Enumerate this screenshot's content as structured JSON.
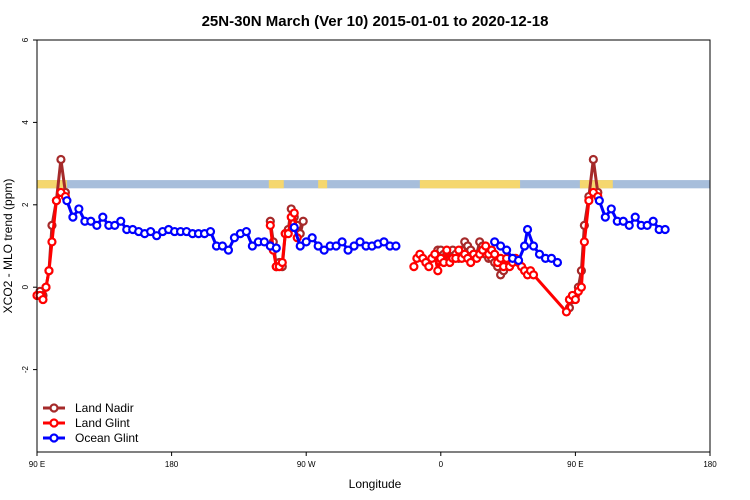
{
  "chart_data": {
    "type": "line",
    "title": "25N-30N March (Ver 10)   2015-01-01 to 2020-12-18",
    "xlabel": "Longitude",
    "ylabel": "XCO2 - MLO trend (ppm)",
    "xlim": [
      90,
      540
    ],
    "ylim": [
      -4,
      6
    ],
    "xticks": [
      {
        "value": 90,
        "label": "90 E"
      },
      {
        "value": 180,
        "label": "180"
      },
      {
        "value": 270,
        "label": "90 W"
      },
      {
        "value": 360,
        "label": "0"
      },
      {
        "value": 450,
        "label": "90 E"
      },
      {
        "value": 540,
        "label": "180"
      }
    ],
    "yticks": [
      {
        "value": -2,
        "label": "-2"
      },
      {
        "value": 0,
        "label": "0"
      },
      {
        "value": 2,
        "label": "2"
      },
      {
        "value": 4,
        "label": "4"
      },
      {
        "value": 6,
        "label": "6"
      }
    ],
    "grid": false,
    "legend_position": "bottom-left",
    "land_ocean_band": {
      "y_range": [
        2.4,
        2.6
      ],
      "land_color": "#f5d76e",
      "ocean_color": "#a7bedb",
      "land_segments": [
        [
          90,
          110
        ],
        [
          245,
          255
        ],
        [
          278,
          284
        ],
        [
          346,
          413
        ],
        [
          453,
          475
        ]
      ]
    },
    "series": [
      {
        "name": "Land Nadir",
        "color": "#a52a2a",
        "segments": [
          [
            [
              92,
              -0.1
            ],
            [
              94,
              -0.2
            ],
            [
              96,
              0.0
            ],
            [
              98,
              0.4
            ],
            [
              100,
              1.5
            ],
            [
              103,
              2.1
            ],
            [
              106,
              3.1
            ],
            [
              109,
              2.3
            ]
          ],
          [
            [
              246,
              1.6
            ],
            [
              248,
              1.1
            ],
            [
              250,
              0.5
            ],
            [
              252,
              0.6
            ],
            [
              254,
              0.5
            ],
            [
              256,
              1.3
            ],
            [
              258,
              1.4
            ],
            [
              260,
              1.9
            ],
            [
              262,
              1.7
            ],
            [
              264,
              1.5
            ],
            [
              266,
              1.3
            ],
            [
              268,
              1.6
            ]
          ],
          [
            [
              358,
              0.9
            ],
            [
              360,
              0.9
            ],
            [
              362,
              0.8
            ],
            [
              364,
              0.8
            ],
            [
              366,
              0.7
            ],
            [
              368,
              0.9
            ],
            [
              370,
              0.8
            ],
            [
              372,
              0.7
            ],
            [
              374,
              0.9
            ],
            [
              376,
              1.1
            ],
            [
              378,
              1.0
            ],
            [
              380,
              0.9
            ],
            [
              382,
              0.8
            ],
            [
              384,
              0.8
            ],
            [
              386,
              1.1
            ],
            [
              388,
              1.0
            ],
            [
              390,
              0.8
            ],
            [
              392,
              0.7
            ],
            [
              394,
              0.7
            ],
            [
              396,
              0.6
            ],
            [
              398,
              0.5
            ],
            [
              400,
              0.3
            ],
            [
              402,
              0.4
            ]
          ],
          [
            [
              446,
              -0.5
            ],
            [
              448,
              -0.3
            ],
            [
              450,
              -0.2
            ],
            [
              452,
              0.0
            ],
            [
              454,
              0.4
            ],
            [
              456,
              1.5
            ],
            [
              459,
              2.2
            ],
            [
              462,
              3.1
            ],
            [
              465,
              2.3
            ]
          ]
        ]
      },
      {
        "name": "Land Glint",
        "color": "#ff0000",
        "segments": [
          [
            [
              90,
              -0.2
            ],
            [
              92,
              -0.2
            ],
            [
              94,
              -0.3
            ],
            [
              96,
              0.0
            ],
            [
              98,
              0.4
            ],
            [
              100,
              1.1
            ],
            [
              103,
              2.1
            ],
            [
              106,
              2.3
            ],
            [
              109,
              2.2
            ]
          ],
          [
            [
              246,
              1.5
            ],
            [
              248,
              0.9
            ],
            [
              250,
              0.5
            ],
            [
              252,
              0.5
            ],
            [
              254,
              0.6
            ],
            [
              256,
              1.3
            ],
            [
              258,
              1.3
            ],
            [
              260,
              1.7
            ],
            [
              262,
              1.8
            ],
            [
              264,
              1.2
            ]
          ],
          [
            [
              342,
              0.5
            ],
            [
              344,
              0.7
            ],
            [
              346,
              0.8
            ],
            [
              348,
              0.7
            ],
            [
              350,
              0.6
            ],
            [
              352,
              0.5
            ],
            [
              354,
              0.7
            ],
            [
              356,
              0.8
            ],
            [
              358,
              0.4
            ],
            [
              360,
              0.7
            ],
            [
              362,
              0.6
            ],
            [
              364,
              0.9
            ],
            [
              366,
              0.6
            ],
            [
              368,
              0.7
            ],
            [
              370,
              0.7
            ],
            [
              372,
              0.9
            ],
            [
              374,
              0.7
            ],
            [
              376,
              0.8
            ],
            [
              378,
              0.7
            ],
            [
              380,
              0.6
            ],
            [
              382,
              0.8
            ],
            [
              384,
              0.7
            ],
            [
              386,
              0.8
            ],
            [
              388,
              0.9
            ],
            [
              390,
              1.0
            ],
            [
              392,
              0.8
            ],
            [
              394,
              0.9
            ],
            [
              396,
              0.8
            ],
            [
              398,
              0.6
            ],
            [
              400,
              0.7
            ],
            [
              402,
              0.5
            ],
            [
              404,
              0.7
            ],
            [
              406,
              0.5
            ],
            [
              408,
              0.6
            ],
            [
              410,
              0.7
            ],
            [
              412,
              0.6
            ],
            [
              414,
              0.5
            ],
            [
              416,
              0.4
            ],
            [
              418,
              0.3
            ],
            [
              420,
              0.4
            ],
            [
              422,
              0.3
            ],
            [
              444,
              -0.6
            ],
            [
              446,
              -0.3
            ],
            [
              448,
              -0.2
            ],
            [
              450,
              -0.3
            ],
            [
              452,
              -0.1
            ],
            [
              454,
              0.0
            ],
            [
              456,
              1.1
            ],
            [
              459,
              2.1
            ],
            [
              462,
              2.3
            ],
            [
              465,
              2.2
            ]
          ]
        ]
      },
      {
        "name": "Ocean Glint",
        "color": "#0000ff",
        "segments": [
          [
            [
              110,
              2.1
            ],
            [
              114,
              1.7
            ],
            [
              118,
              1.9
            ],
            [
              122,
              1.6
            ],
            [
              126,
              1.6
            ],
            [
              130,
              1.5
            ],
            [
              134,
              1.7
            ],
            [
              138,
              1.5
            ],
            [
              142,
              1.5
            ],
            [
              146,
              1.6
            ],
            [
              150,
              1.4
            ],
            [
              154,
              1.4
            ],
            [
              158,
              1.35
            ],
            [
              162,
              1.3
            ],
            [
              166,
              1.35
            ],
            [
              170,
              1.25
            ],
            [
              174,
              1.35
            ],
            [
              178,
              1.4
            ],
            [
              182,
              1.35
            ],
            [
              186,
              1.35
            ],
            [
              190,
              1.35
            ],
            [
              194,
              1.3
            ],
            [
              198,
              1.3
            ],
            [
              202,
              1.3
            ],
            [
              206,
              1.35
            ],
            [
              210,
              1.0
            ],
            [
              214,
              1.0
            ],
            [
              218,
              0.9
            ],
            [
              222,
              1.2
            ],
            [
              226,
              1.3
            ],
            [
              230,
              1.35
            ],
            [
              234,
              1.0
            ],
            [
              238,
              1.1
            ],
            [
              242,
              1.1
            ],
            [
              246,
              1.0
            ],
            [
              250,
              0.95
            ]
          ],
          [
            [
              262,
              1.45
            ],
            [
              266,
              1.0
            ],
            [
              270,
              1.1
            ],
            [
              274,
              1.2
            ],
            [
              278,
              1.0
            ],
            [
              282,
              0.9
            ],
            [
              286,
              1.0
            ],
            [
              290,
              1.0
            ],
            [
              294,
              1.1
            ],
            [
              298,
              0.9
            ],
            [
              302,
              1.0
            ],
            [
              306,
              1.1
            ],
            [
              310,
              1.0
            ],
            [
              314,
              1.0
            ],
            [
              318,
              1.05
            ],
            [
              322,
              1.1
            ],
            [
              326,
              1.0
            ],
            [
              330,
              1.0
            ]
          ],
          [
            [
              396,
              1.1
            ],
            [
              400,
              1.0
            ],
            [
              404,
              0.9
            ],
            [
              408,
              0.7
            ],
            [
              412,
              0.65
            ],
            [
              416,
              1.0
            ],
            [
              418,
              1.4
            ],
            [
              422,
              1.0
            ],
            [
              426,
              0.8
            ],
            [
              430,
              0.7
            ],
            [
              434,
              0.7
            ],
            [
              438,
              0.6
            ]
          ],
          [
            [
              466,
              2.1
            ],
            [
              470,
              1.7
            ],
            [
              474,
              1.9
            ],
            [
              478,
              1.6
            ],
            [
              482,
              1.6
            ],
            [
              486,
              1.5
            ],
            [
              490,
              1.7
            ],
            [
              494,
              1.5
            ],
            [
              498,
              1.5
            ],
            [
              502,
              1.6
            ],
            [
              506,
              1.4
            ],
            [
              510,
              1.4
            ]
          ]
        ]
      }
    ]
  }
}
